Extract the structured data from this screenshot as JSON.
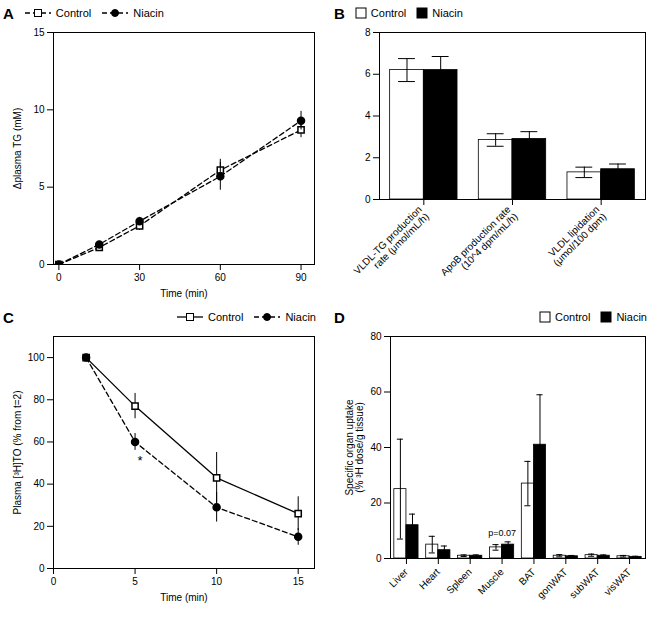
{
  "chart_data": [
    {
      "type": "line",
      "title": "A",
      "xlabel": "Time (min)",
      "ylabel": "Δplasma TG (mM)",
      "xlim": [
        -2,
        95
      ],
      "ylim": [
        0,
        15
      ],
      "xticks": [
        0,
        30,
        60,
        90
      ],
      "yticks": [
        0,
        5,
        10,
        15
      ],
      "x": [
        0,
        15,
        30,
        60,
        90
      ],
      "series": [
        {
          "name": "Control",
          "color": "#000000",
          "marker": "open_square",
          "line_style": "dashed",
          "values": [
            0,
            1.1,
            2.5,
            6.1,
            8.7
          ],
          "error": [
            0,
            0.25,
            0.3,
            0.7,
            0.5
          ]
        },
        {
          "name": "Niacin",
          "color": "#000000",
          "marker": "circle",
          "line_style": "dashed",
          "values": [
            0,
            1.3,
            2.8,
            5.7,
            9.3
          ],
          "error": [
            0,
            0.2,
            0.25,
            0.9,
            0.6
          ]
        }
      ],
      "legend": "upper left"
    },
    {
      "type": "bar",
      "title": "B",
      "ylim": [
        0,
        8
      ],
      "yticks": [
        0,
        2,
        4,
        6,
        8
      ],
      "categories": [
        "VLDL-TG production\nrate (μmol/mL/h)",
        "ApoB production rate\n(10^4 dpm/mL/h)",
        "VLDL lipidation\n(μmol/100 dpm)"
      ],
      "series": [
        {
          "name": "Control",
          "color": "#ffffff",
          "values": [
            6.2,
            2.85,
            1.3
          ],
          "error": [
            0.55,
            0.3,
            0.25
          ]
        },
        {
          "name": "Niacin",
          "color": "#000000",
          "values": [
            6.2,
            2.9,
            1.45
          ],
          "error": [
            0.65,
            0.35,
            0.25
          ]
        }
      ],
      "legend": "upper left"
    },
    {
      "type": "line",
      "title": "C",
      "xlabel": "Time (min)",
      "ylabel": "Plasma [³H]TO (% from t=2)",
      "xlim": [
        0,
        16
      ],
      "ylim": [
        0,
        110
      ],
      "xticks": [
        0,
        5,
        10,
        15
      ],
      "yticks": [
        0,
        20,
        40,
        60,
        80,
        100
      ],
      "x": [
        2,
        5,
        10,
        15
      ],
      "series": [
        {
          "name": "Control",
          "color": "#000000",
          "marker": "open_square",
          "line_style": "solid",
          "values": [
            100,
            77,
            43,
            26
          ],
          "error": [
            0,
            6,
            12,
            8
          ]
        },
        {
          "name": "Niacin",
          "color": "#000000",
          "marker": "circle",
          "line_style": "dashed",
          "values": [
            100,
            60,
            29,
            15
          ],
          "error": [
            0,
            4,
            7,
            4
          ]
        }
      ],
      "annotations": [
        {
          "text": "*",
          "x": 5.3,
          "y": 51
        }
      ],
      "legend": "upper right"
    },
    {
      "type": "bar",
      "title": "D",
      "ylabel": "Specific organ uptake\n(% ³H dose/g tissue)",
      "ylim": [
        0,
        80
      ],
      "yticks": [
        0,
        20,
        40,
        60,
        80
      ],
      "categories": [
        "Liver",
        "Heart",
        "Spleen",
        "Muscle",
        "BAT",
        "gonWAT",
        "subWAT",
        "visWAT"
      ],
      "series": [
        {
          "name": "Control",
          "color": "#ffffff",
          "values": [
            25,
            5,
            1,
            4,
            27,
            1.0,
            1.2,
            0.8
          ],
          "error": [
            18,
            3,
            0.3,
            1,
            8,
            0.4,
            0.4,
            0.3
          ]
        },
        {
          "name": "Niacin",
          "color": "#000000",
          "values": [
            12,
            3,
            1,
            5,
            41,
            0.8,
            1.0,
            0.6
          ],
          "error": [
            4,
            1.5,
            0.3,
            1,
            18,
            0.3,
            0.3,
            0.2
          ]
        }
      ],
      "annotations": [
        {
          "text": "p=0.07",
          "x": "Muscle",
          "y": 8
        }
      ],
      "legend": "upper right"
    }
  ]
}
